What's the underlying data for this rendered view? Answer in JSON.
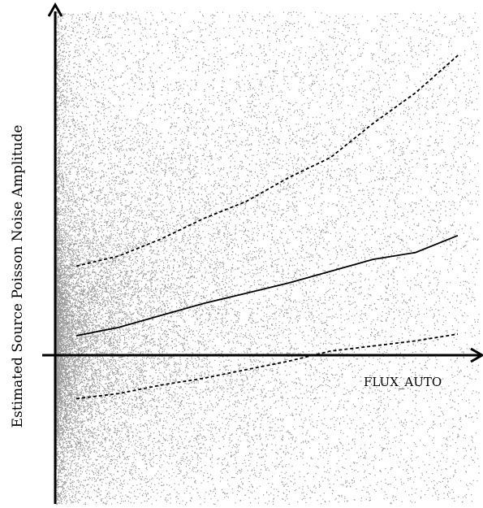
{
  "chart_data": {
    "type": "scatter",
    "xlabel": "FLUX_AUTO",
    "ylabel": "Estimated Source Poisson Noise Amplitude",
    "xlim": [
      0,
      100
    ],
    "ylim": [
      -45,
      100
    ],
    "grid": false,
    "legend": "none",
    "colors": {
      "points": "#9a9a9a",
      "lines": "#000000",
      "background": "#ffffff"
    },
    "scatter_note_values": {
      "point_count": 26000,
      "density_falloff": 2.6
    },
    "series": [
      {
        "style": "solid",
        "x": [
          5,
          15,
          25,
          35,
          45,
          55,
          65,
          75,
          85,
          95
        ],
        "y": [
          4.5,
          7,
          10.5,
          14,
          17,
          20,
          23.5,
          27,
          29,
          34
        ]
      },
      {
        "style": "dashed",
        "x": [
          5,
          15,
          25,
          35,
          45,
          55,
          65,
          75,
          85,
          95
        ],
        "y": [
          25,
          28,
          33,
          39,
          44,
          51,
          57,
          67,
          76,
          87
        ]
      },
      {
        "style": "dashed",
        "x": [
          5,
          15,
          25,
          35,
          45,
          55,
          65,
          75,
          85,
          95
        ],
        "y": [
          -14,
          -12.5,
          -10,
          -8,
          -5.5,
          -3,
          0,
          1.5,
          3,
          5
        ]
      }
    ]
  }
}
